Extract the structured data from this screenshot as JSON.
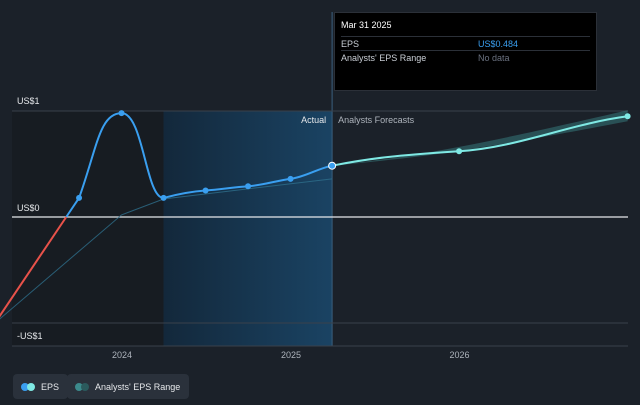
{
  "chart_data": {
    "type": "line",
    "x_ticks": [
      "2024",
      "2025",
      "2026"
    ],
    "y_ticks": [
      "US$1",
      "US$0",
      "-US$1"
    ],
    "ylim": [
      -1,
      1
    ],
    "divider_labels": {
      "actual": "Actual",
      "forecast": "Analysts Forecasts"
    },
    "series": [
      {
        "name": "EPS",
        "kind": "actual",
        "x": [
          "2023-04-01",
          "2023-09-30",
          "2023-12-31",
          "2024-03-31",
          "2024-06-30",
          "2024-09-30",
          "2024-12-31",
          "2025-03-31"
        ],
        "y": [
          -1.0,
          0.18,
          0.98,
          0.18,
          0.25,
          0.29,
          0.36,
          0.484
        ]
      },
      {
        "name": "EPS",
        "kind": "forecast",
        "x": [
          "2025-03-31",
          "2025-12-31",
          "2026-12-31"
        ],
        "y": [
          0.484,
          0.62,
          0.95
        ]
      }
    ],
    "colors": {
      "eps": "#3a9ff0",
      "negative": "#e8524a",
      "forecast": "#7fe9e4",
      "range": "#3c8a8c"
    }
  },
  "tooltip": {
    "date": "Mar 31 2025",
    "rows": [
      {
        "label": "EPS",
        "value": "US$0.484"
      },
      {
        "label": "Analysts' EPS Range",
        "value": "No data"
      }
    ]
  },
  "legend": [
    {
      "label": "EPS",
      "dot_colors": [
        "#3a9ff0",
        "#7fe9e4"
      ]
    },
    {
      "label": "Analysts' EPS Range",
      "dot_colors": [
        "#3c8a8c",
        "#2b5a5d"
      ]
    }
  ]
}
